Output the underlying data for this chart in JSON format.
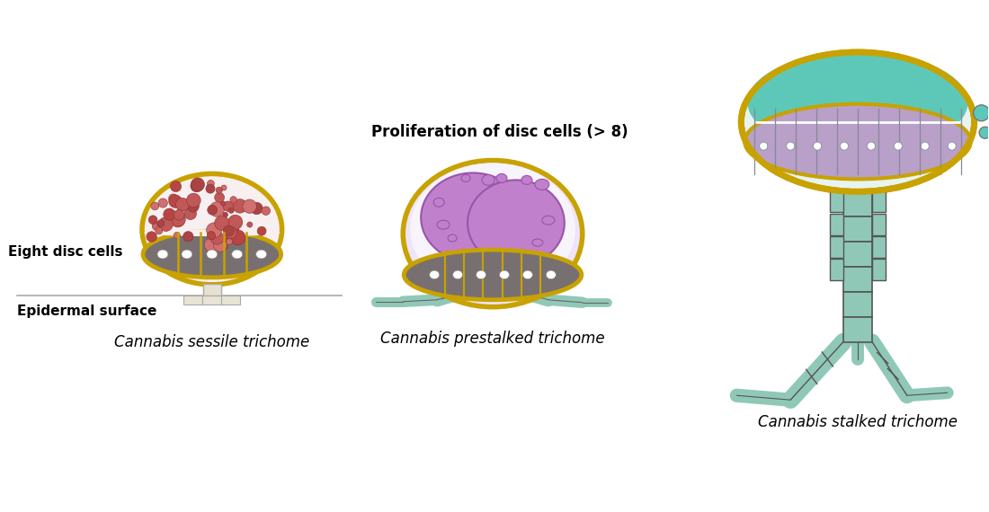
{
  "bg": "#ffffff",
  "col": {
    "gold": "#c8a200",
    "sessile_upper_bg": "#f8f0f0",
    "sessile_dot1": "#c05858",
    "sessile_dot2": "#cc6666",
    "sessile_dot3": "#b84444",
    "sessile_dot4": "#d07070",
    "sessile_dot5": "#aa4444",
    "disc_dark": "#787070",
    "disc_texture": "#6a6060",
    "purple_main": "#c080cc",
    "purple_bg": "#f0e4f8",
    "purple_small": "#d090dc",
    "teal": "#90c8b8",
    "teal_light": "#a8d8c8",
    "cap_teal": "#5ec8b8",
    "lavender": "#b8a0c8",
    "lavender_bg": "#e8dff0",
    "stalk_bg": "#e8f4f0"
  },
  "labels": {
    "sessile": "Cannabis sessile trichome",
    "prestalked": "Cannabis prestalked trichome",
    "stalked": "Cannabis stalked trichome",
    "eight": "Eight disc cells",
    "epidermal": "Epidermal surface",
    "prolif": "Proliferation of disc cells (> 8)"
  }
}
